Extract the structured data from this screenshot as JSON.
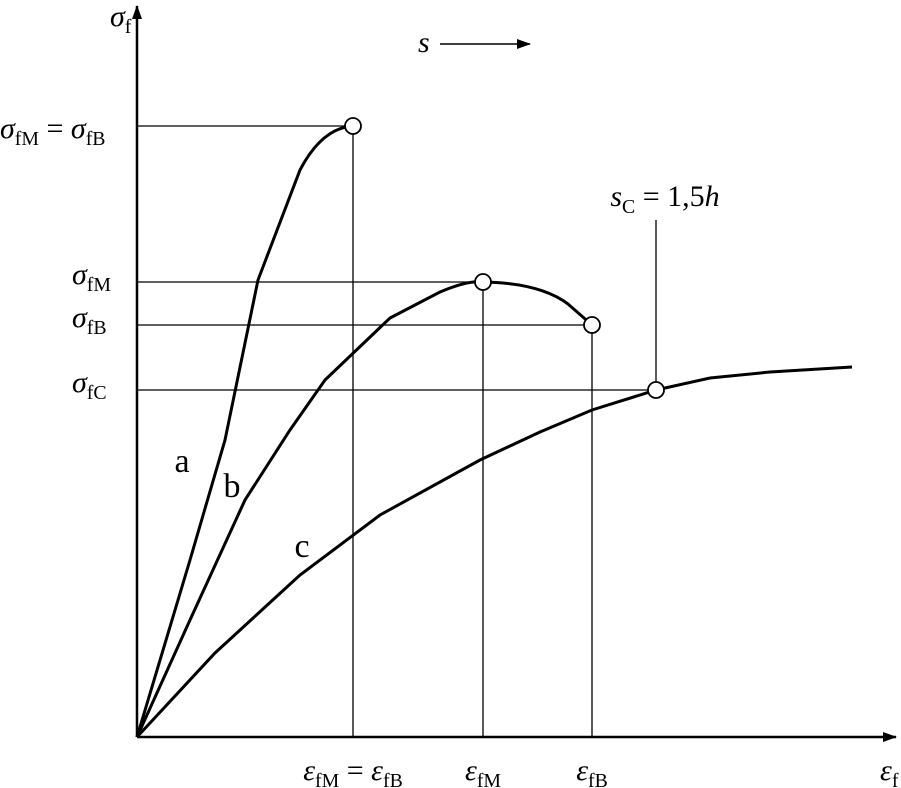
{
  "labels": {
    "y_axis": [
      {
        "t": "σ",
        "style": "italic"
      },
      {
        "t": "f",
        "style": "sub"
      }
    ],
    "x_axis": [
      {
        "t": "ε",
        "style": "italic"
      },
      {
        "t": "f",
        "style": "sub"
      }
    ],
    "direction": [
      {
        "t": "s",
        "style": "italic"
      }
    ],
    "stress_max_eq_break": [
      {
        "t": "σ",
        "style": "italic"
      },
      {
        "t": "fM",
        "style": "sub"
      },
      {
        "t": " = ",
        "style": "plain"
      },
      {
        "t": "σ",
        "style": "italic"
      },
      {
        "t": "fB",
        "style": "sub"
      }
    ],
    "stress_max": [
      {
        "t": "σ",
        "style": "italic"
      },
      {
        "t": "fM",
        "style": "sub"
      }
    ],
    "stress_break": [
      {
        "t": "σ",
        "style": "italic"
      },
      {
        "t": "fB",
        "style": "sub"
      }
    ],
    "stress_conventional": [
      {
        "t": "σ",
        "style": "italic"
      },
      {
        "t": "fC",
        "style": "sub"
      }
    ],
    "strain_max_eq_break": [
      {
        "t": "ε",
        "style": "italic"
      },
      {
        "t": "fM",
        "style": "sub"
      },
      {
        "t": " = ",
        "style": "plain"
      },
      {
        "t": "ε",
        "style": "italic"
      },
      {
        "t": "fB",
        "style": "sub"
      }
    ],
    "strain_max": [
      {
        "t": "ε",
        "style": "italic"
      },
      {
        "t": "fM",
        "style": "sub"
      }
    ],
    "strain_break": [
      {
        "t": "ε",
        "style": "italic"
      },
      {
        "t": "fB",
        "style": "sub"
      }
    ],
    "conventional_deflection": [
      {
        "t": "s",
        "style": "italic"
      },
      {
        "t": "C",
        "style": "sub"
      },
      {
        "t": " = 1,5",
        "style": "plain"
      },
      {
        "t": "h",
        "style": "italic"
      }
    ],
    "curve_a": [
      {
        "t": "a",
        "style": "plain"
      }
    ],
    "curve_b": [
      {
        "t": "b",
        "style": "plain"
      }
    ],
    "curve_c": [
      {
        "t": "c",
        "style": "plain"
      }
    ]
  }
}
